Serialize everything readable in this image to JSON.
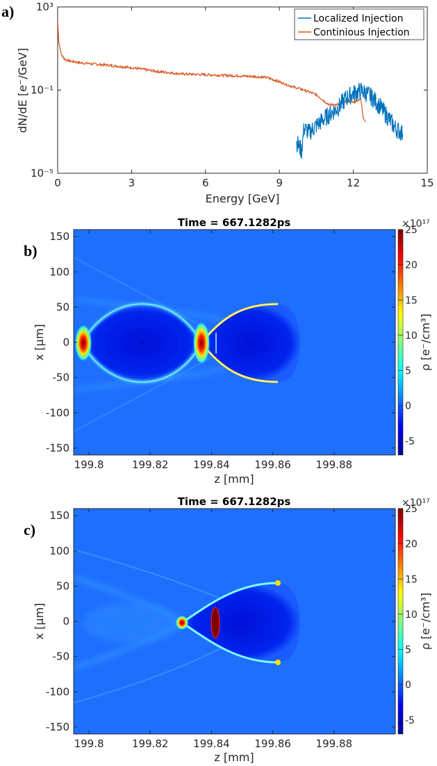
{
  "panel_labels": [
    "a)",
    "b)",
    "c)"
  ],
  "colors": {
    "localized": "#0072BD",
    "continuous": "#D95319",
    "field_bg": "#1f6fff"
  },
  "chart_data": [
    {
      "type": "line",
      "panel": "a)",
      "title": "",
      "xlabel": "Energy [GeV]",
      "ylabel": "dN/dE [e⁻/GeV]",
      "yscale": "log",
      "xlim": [
        0,
        15
      ],
      "ylim": [
        1e-05,
        1000
      ],
      "xticks": [
        "0",
        "3",
        "6",
        "9",
        "12",
        "15"
      ],
      "yticks": [
        "10⁻⁵",
        "10⁻¹",
        "10³"
      ],
      "legend_position": "top-right",
      "series": [
        {
          "name": "Localized Injection",
          "x": [
            9.7,
            9.9,
            10.0,
            10.2,
            10.5,
            10.8,
            11.1,
            11.4,
            11.7,
            12.0,
            12.3,
            12.5,
            12.8,
            13.1,
            13.4,
            13.7,
            14.0
          ],
          "y": [
            0.0003,
            0.00012,
            0.0015,
            0.0009,
            0.002,
            0.004,
            0.008,
            0.015,
            0.04,
            0.07,
            0.09,
            0.075,
            0.04,
            0.015,
            0.005,
            0.0015,
            0.0008
          ]
        },
        {
          "name": "Continious Injection",
          "x": [
            0,
            0.05,
            0.15,
            0.3,
            0.5,
            1.0,
            2.0,
            3.0,
            4.0,
            5.0,
            6.0,
            7.0,
            8.0,
            8.5,
            9.0,
            9.5,
            10.0,
            10.5,
            11.0,
            11.5,
            11.8,
            12.0,
            12.3,
            12.4,
            12.5
          ],
          "y": [
            200,
            20,
            5,
            3,
            2.5,
            2.0,
            1.6,
            1.2,
            0.8,
            0.6,
            0.55,
            0.5,
            0.45,
            0.4,
            0.25,
            0.15,
            0.1,
            0.06,
            0.02,
            0.02,
            0.03,
            0.025,
            0.04,
            0.005,
            0.003
          ]
        }
      ]
    },
    {
      "type": "heatmap",
      "panel": "b)",
      "title": "Time = 667.1282ps",
      "xlabel": "z [mm]",
      "ylabel": "x [μm]",
      "xlim": [
        199.795,
        199.9
      ],
      "ylim": [
        -160,
        160
      ],
      "xticks": [
        "199.8",
        "199.82",
        "199.84",
        "199.86",
        "199.88"
      ],
      "yticks": [
        "150",
        "100",
        "50",
        "0",
        "-50",
        "-100",
        "-150"
      ],
      "colorbar_label": "ρ [e⁻/cm³]",
      "colorbar_ticks": [
        "25",
        "20",
        "15",
        "10",
        "5",
        "0",
        "-5"
      ],
      "colorbar_exponent": "×10¹⁷",
      "clim": [
        -7,
        25
      ]
    },
    {
      "type": "heatmap",
      "panel": "c)",
      "title": "Time = 667.1282ps",
      "xlabel": "z [mm]",
      "ylabel": "x [μm]",
      "xlim": [
        199.795,
        199.9
      ],
      "ylim": [
        -160,
        160
      ],
      "xticks": [
        "199.8",
        "199.82",
        "199.84",
        "199.86",
        "199.88"
      ],
      "yticks": [
        "150",
        "100",
        "50",
        "0",
        "-50",
        "-100",
        "-150"
      ],
      "colorbar_label": "ρ [e⁻/cm³]",
      "colorbar_ticks": [
        "25",
        "20",
        "15",
        "10",
        "5",
        "0",
        "-5"
      ],
      "colorbar_exponent": "×10¹⁷",
      "clim": [
        -7,
        25
      ]
    }
  ]
}
